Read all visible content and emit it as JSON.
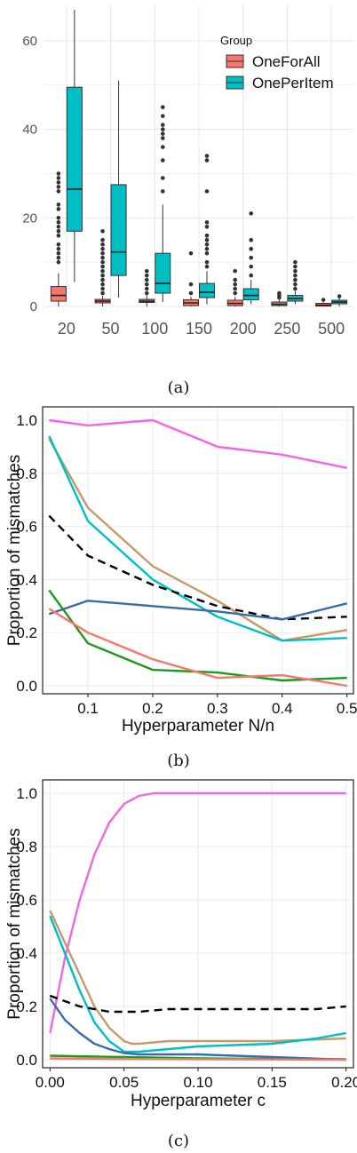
{
  "captions": [
    "(a)",
    "(b)",
    "(c)"
  ],
  "chart_data": [
    {
      "type": "box",
      "legend": {
        "title": "Group",
        "placement": "top-right"
      },
      "categories": [
        "20",
        "50",
        "100",
        "150",
        "200",
        "250",
        "500"
      ],
      "y_ticks": [
        "0",
        "20",
        "40",
        "60"
      ],
      "ylim": [
        0,
        68
      ],
      "grid": true,
      "series": [
        {
          "name": "OneForAll",
          "color": "#f8766d",
          "boxes": [
            {
              "min": 0,
              "q1": 1.2,
              "median": 2.5,
              "q3": 4.5,
              "max": 7.5,
              "outliers": [
                10,
                11,
                12,
                13,
                14,
                16,
                17,
                18,
                19,
                20,
                22,
                23,
                26,
                27,
                28,
                29,
                30
              ]
            },
            {
              "min": 0,
              "q1": 0.8,
              "median": 1.2,
              "q3": 1.6,
              "max": 2.4,
              "outliers": [
                3,
                4,
                5,
                6,
                7,
                8,
                9,
                10,
                11,
                12,
                13,
                14,
                15,
                17
              ]
            },
            {
              "min": 0,
              "q1": 0.9,
              "median": 1.2,
              "q3": 1.6,
              "max": 2.5,
              "outliers": [
                3,
                4,
                5,
                6,
                7,
                8
              ]
            },
            {
              "min": 0,
              "q1": 0.2,
              "median": 0.8,
              "q3": 1.5,
              "max": 2.2,
              "outliers": [
                3,
                5,
                12
              ]
            },
            {
              "min": 0,
              "q1": 0.2,
              "median": 0.7,
              "q3": 1.4,
              "max": 2.2,
              "outliers": [
                3,
                4,
                5,
                6,
                8
              ]
            },
            {
              "min": 0,
              "q1": 0.2,
              "median": 0.5,
              "q3": 1.0,
              "max": 1.5,
              "outliers": [
                2,
                2.5,
                3
              ]
            },
            {
              "min": 0,
              "q1": 0.1,
              "median": 0.3,
              "q3": 0.7,
              "max": 1.0,
              "outliers": [
                1.5
              ]
            }
          ]
        },
        {
          "name": "OnePerItem",
          "color": "#00bfc4",
          "boxes": [
            {
              "min": 5.5,
              "q1": 17,
              "median": 26.5,
              "q3": 49.5,
              "max": 67,
              "outliers": []
            },
            {
              "min": 2,
              "q1": 7,
              "median": 12.3,
              "q3": 27.5,
              "max": 51,
              "outliers": []
            },
            {
              "min": 1,
              "q1": 3,
              "median": 5.2,
              "q3": 12,
              "max": 23,
              "outliers": [
                26,
                29,
                33,
                36,
                38,
                39,
                40,
                41,
                43,
                45
              ]
            },
            {
              "min": 0.5,
              "q1": 2,
              "median": 3.2,
              "q3": 5.2,
              "max": 8,
              "outliers": [
                9,
                10,
                12,
                13,
                14,
                15,
                16,
                18,
                19,
                26,
                33,
                34
              ]
            },
            {
              "min": 0.5,
              "q1": 1.5,
              "median": 2.5,
              "q3": 4,
              "max": 6,
              "outliers": [
                7,
                9,
                11,
                13,
                15,
                21
              ]
            },
            {
              "min": 0.5,
              "q1": 1.2,
              "median": 1.8,
              "q3": 2.5,
              "max": 3.5,
              "outliers": [
                4,
                5,
                6,
                7,
                8,
                9,
                10
              ]
            },
            {
              "min": 0,
              "q1": 0.6,
              "median": 1,
              "q3": 1.4,
              "max": 1.9,
              "outliers": [
                2.3
              ]
            }
          ]
        }
      ]
    },
    {
      "type": "line",
      "xlabel": "Hyperparameter N/n",
      "ylabel": "Proportion of mismatches",
      "xlim": [
        0.03,
        0.51
      ],
      "ylim": [
        -0.03,
        1.05
      ],
      "x_ticks": [
        0.1,
        0.2,
        0.3,
        0.4,
        0.5
      ],
      "x_tick_labels": [
        "0.1",
        "0.2",
        "0.3",
        "0.4",
        "0.5"
      ],
      "y_ticks": [
        0.0,
        0.2,
        0.4,
        0.6,
        0.8,
        1.0
      ],
      "y_tick_labels": [
        "0.0",
        "0.2",
        "0.4",
        "0.6",
        "0.8",
        "1.0"
      ],
      "grid": true,
      "series": [
        {
          "color": "#f564e3",
          "dashed": false,
          "x": [
            0.04,
            0.1,
            0.2,
            0.3,
            0.4,
            0.5
          ],
          "y": [
            1.0,
            0.98,
            1.0,
            0.9,
            0.87,
            0.82
          ]
        },
        {
          "color": "#c49a6c",
          "dashed": false,
          "x": [
            0.04,
            0.1,
            0.2,
            0.3,
            0.4,
            0.5
          ],
          "y": [
            0.93,
            0.67,
            0.45,
            0.32,
            0.17,
            0.21
          ]
        },
        {
          "color": "#00bfc4",
          "dashed": false,
          "x": [
            0.04,
            0.1,
            0.2,
            0.3,
            0.4,
            0.5
          ],
          "y": [
            0.94,
            0.62,
            0.4,
            0.26,
            0.17,
            0.18
          ]
        },
        {
          "color": "#000000",
          "dashed": true,
          "x": [
            0.04,
            0.1,
            0.2,
            0.3,
            0.4,
            0.5
          ],
          "y": [
            0.64,
            0.49,
            0.38,
            0.3,
            0.25,
            0.26
          ]
        },
        {
          "color": "#3b6aa8",
          "dashed": false,
          "x": [
            0.04,
            0.1,
            0.2,
            0.3,
            0.4,
            0.5
          ],
          "y": [
            0.27,
            0.32,
            0.3,
            0.28,
            0.25,
            0.31
          ]
        },
        {
          "color": "#1a9a1a",
          "dashed": false,
          "x": [
            0.04,
            0.1,
            0.2,
            0.3,
            0.4,
            0.5
          ],
          "y": [
            0.36,
            0.16,
            0.06,
            0.05,
            0.02,
            0.03
          ]
        },
        {
          "color": "#f8766d",
          "dashed": false,
          "x": [
            0.04,
            0.1,
            0.2,
            0.3,
            0.4,
            0.5
          ],
          "y": [
            0.29,
            0.2,
            0.1,
            0.03,
            0.04,
            0.0
          ]
        }
      ]
    },
    {
      "type": "line",
      "xlabel": "Hyperparameter c",
      "ylabel": "Proportion of mismatches",
      "xlim": [
        -0.005,
        0.205
      ],
      "ylim": [
        -0.03,
        1.05
      ],
      "x_ticks": [
        0.0,
        0.05,
        0.1,
        0.15,
        0.2
      ],
      "x_tick_labels": [
        "0.00",
        "0.05",
        "0.10",
        "0.15",
        "0.20"
      ],
      "y_ticks": [
        0.0,
        0.2,
        0.4,
        0.6,
        0.8,
        1.0
      ],
      "y_tick_labels": [
        "0.0",
        "0.2",
        "0.4",
        "0.6",
        "0.8",
        "1.0"
      ],
      "grid": true,
      "series": [
        {
          "color": "#f564e3",
          "dashed": false,
          "x": [
            0.0,
            0.01,
            0.02,
            0.03,
            0.04,
            0.05,
            0.06,
            0.07,
            0.1,
            0.15,
            0.2
          ],
          "y": [
            0.1,
            0.38,
            0.6,
            0.77,
            0.89,
            0.96,
            0.99,
            1.0,
            1.0,
            1.0,
            1.0
          ]
        },
        {
          "color": "#c49a6c",
          "dashed": false,
          "x": [
            0.0,
            0.01,
            0.02,
            0.03,
            0.04,
            0.05,
            0.055,
            0.06,
            0.08,
            0.1,
            0.15,
            0.2
          ],
          "y": [
            0.56,
            0.44,
            0.32,
            0.2,
            0.12,
            0.07,
            0.06,
            0.06,
            0.07,
            0.07,
            0.07,
            0.08
          ]
        },
        {
          "color": "#00bfc4",
          "dashed": false,
          "x": [
            0.0,
            0.01,
            0.02,
            0.03,
            0.04,
            0.05,
            0.055,
            0.06,
            0.08,
            0.1,
            0.15,
            0.18,
            0.2
          ],
          "y": [
            0.54,
            0.4,
            0.26,
            0.14,
            0.07,
            0.03,
            0.03,
            0.03,
            0.04,
            0.05,
            0.06,
            0.08,
            0.1
          ]
        },
        {
          "color": "#000000",
          "dashed": true,
          "x": [
            0.0,
            0.02,
            0.04,
            0.06,
            0.08,
            0.1,
            0.12,
            0.14,
            0.16,
            0.18,
            0.2
          ],
          "y": [
            0.24,
            0.2,
            0.18,
            0.18,
            0.19,
            0.19,
            0.19,
            0.19,
            0.19,
            0.19,
            0.2
          ]
        },
        {
          "color": "#3b6aa8",
          "dashed": false,
          "x": [
            0.0,
            0.01,
            0.02,
            0.03,
            0.04,
            0.05,
            0.06,
            0.1,
            0.15,
            0.2
          ],
          "y": [
            0.23,
            0.15,
            0.1,
            0.06,
            0.04,
            0.025,
            0.02,
            0.02,
            0.01,
            0.0
          ]
        },
        {
          "color": "#1a9a1a",
          "dashed": false,
          "x": [
            0.0,
            0.05,
            0.1,
            0.15,
            0.2
          ],
          "y": [
            0.015,
            0.01,
            0.005,
            0.003,
            0.002
          ]
        },
        {
          "color": "#f8766d",
          "dashed": false,
          "x": [
            0.0,
            0.05,
            0.1,
            0.15,
            0.2
          ],
          "y": [
            0.005,
            0.003,
            0.002,
            0.001,
            0.0
          ]
        }
      ]
    }
  ]
}
